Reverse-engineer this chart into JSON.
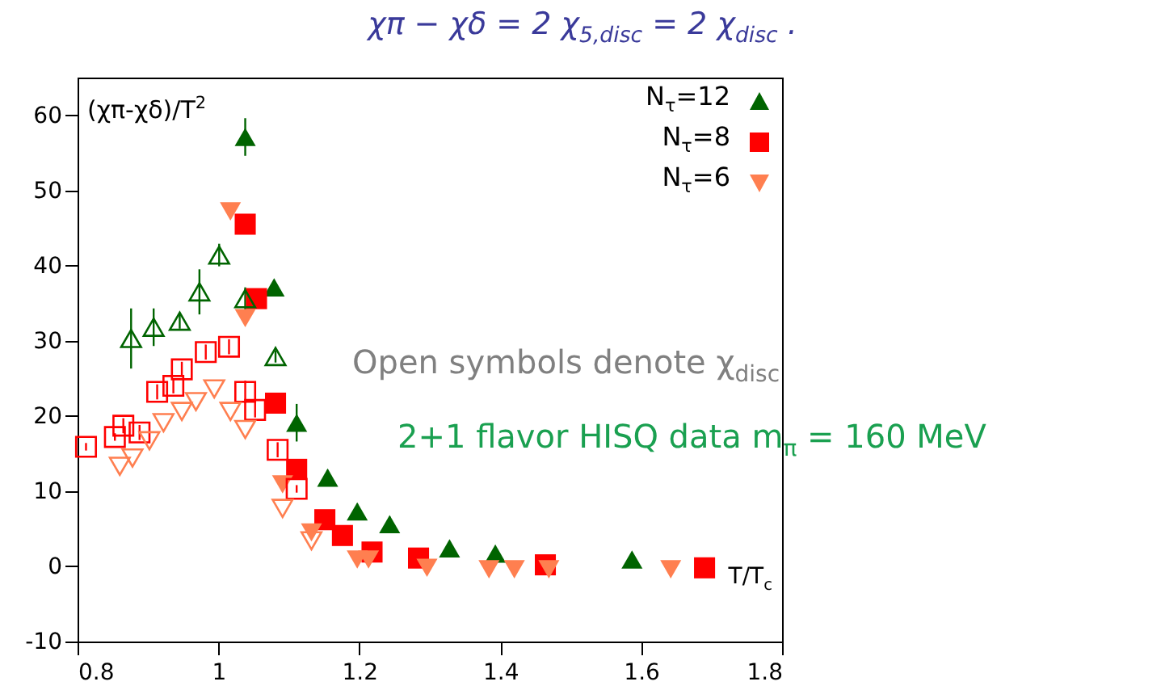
{
  "chart_data": {
    "type": "scatter",
    "title": "χπ − χδ = 2 χ$_{5,disc}$ = 2 χ$_{disc}$ .",
    "ylabel": "(χπ-χδ)/T$^{2}$",
    "xlabel": "T/T$_{c}$",
    "annotations": [
      "Open symbols denote χ$_{disc}$",
      "2+1 flavor HISQ data m$_{π}$ = 160 MeV"
    ],
    "xlim": [
      0.8,
      1.8
    ],
    "xticks": [
      0.8,
      1,
      1.2,
      1.4,
      1.6,
      1.8
    ],
    "ylim": [
      -10,
      65
    ],
    "yticks": [
      -10,
      0,
      10,
      20,
      30,
      40,
      50,
      60
    ],
    "grid": false,
    "legend": "top right",
    "series": [
      {
        "name": "N$_{τ}$=12",
        "color": "#006400",
        "marker": "triangle",
        "x": [
          1.038,
          1.079,
          1.111,
          1.155,
          1.197,
          1.243,
          1.328,
          1.393,
          1.587
        ],
        "values": [
          57.1,
          37.1,
          19.1,
          11.8,
          7.3,
          5.6,
          2.4,
          1.7,
          0.9
        ],
        "errors": [
          2.5,
          0.8,
          2.5,
          1,
          1,
          1,
          null,
          null,
          null
        ]
      },
      {
        "name": "N$_{τ}$=8",
        "color": "#ff0000",
        "marker": "square",
        "x": [
          1.038,
          1.054,
          1.081,
          1.111,
          1.151,
          1.176,
          1.218,
          1.284,
          1.464,
          1.69
        ],
        "values": [
          45.5,
          35.6,
          21.7,
          12.9,
          6.2,
          4.1,
          1.9,
          1.1,
          0.2,
          -0.2
        ]
      },
      {
        "name": "N$_{τ}$=6",
        "color": "#ff7f50",
        "marker": "triangle-down",
        "x": [
          1.017,
          1.038,
          1.091,
          1.132,
          1.197,
          1.213,
          1.296,
          1.384,
          1.42,
          1.469,
          1.642
        ],
        "values": [
          47.2,
          33.0,
          10.9,
          4.5,
          0.9,
          0.9,
          -0.2,
          -0.4,
          -0.4,
          -0.4,
          -0.4
        ]
      },
      {
        "color": "#006400",
        "marker": "triangle",
        "x": [
          0.876,
          0.908,
          0.945,
          0.973,
          1.001,
          1.038,
          1.081
        ],
        "values": [
          30.3,
          31.8,
          32.6,
          36.5,
          41.4,
          35.6,
          27.9
        ],
        "errors": [
          4,
          2.5,
          1,
          3,
          1.5,
          1.5,
          0.8
        ]
      },
      {
        "color": "#ff0000",
        "marker": "square",
        "x": [
          0.812,
          0.853,
          0.865,
          0.888,
          0.913,
          0.936,
          0.948,
          0.982,
          1.015,
          1.038,
          1.052,
          1.084,
          1.111
        ],
        "values": [
          15.9,
          17.2,
          18.7,
          17.8,
          23.2,
          24.0,
          26.2,
          28.5,
          29.2,
          23.2,
          20.8,
          15.5,
          10.3
        ],
        "errors": [
          0.5,
          0.5,
          1,
          1,
          1,
          1,
          1,
          1,
          1,
          1.5,
          1,
          1,
          0.5
        ]
      },
      {
        "color": "#ff7f50",
        "marker": "triangle-down",
        "x": [
          0.86,
          0.878,
          0.902,
          0.922,
          0.948,
          0.968,
          0.994,
          1.017,
          1.038,
          1.091,
          1.132
        ],
        "values": [
          13.3,
          14.4,
          16.7,
          19.1,
          20.6,
          21.9,
          23.6,
          20.6,
          18.2,
          7.7,
          3.4
        ]
      }
    ]
  }
}
